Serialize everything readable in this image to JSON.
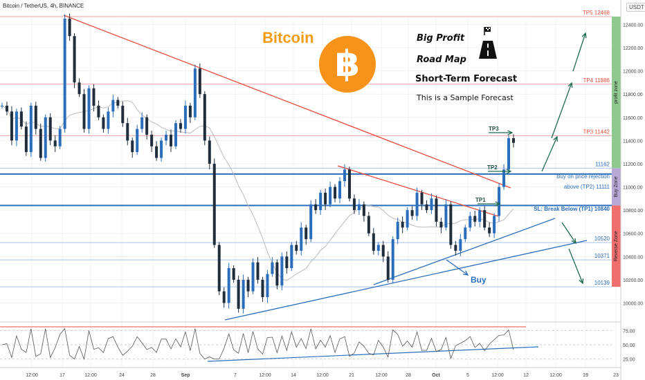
{
  "header": {
    "symbol": "Bitcoin / TetherUS, 4h, BINANCE",
    "currency": "USDT"
  },
  "title": "Bitcoin",
  "btc_symbol": "฿",
  "notes": {
    "big_profit": "Big Profit",
    "road_map": "Road Map",
    "short_term": "Short-Term Forecast",
    "sample": "This is a Sample Forecast"
  },
  "annotations": {
    "buy_rejection_line1": "Buy on price rejection",
    "buy_rejection_line2": "above (TP2) 11111",
    "sl": "SL: Break Below (TP1) 10840",
    "buy": "Buy",
    "tp1": "TP1",
    "tp2": "TP2",
    "tp3": "TP3"
  },
  "zones": {
    "profit": "profit zone",
    "buy": "Buy Zone",
    "reverse": "Reverse Zone"
  },
  "colors": {
    "up": "#2a6ebb",
    "down": "#1f2d3d",
    "tp": "#e74c3c",
    "level": "#2a6ebb",
    "profit_zone": "#8fc98f",
    "buy_zone": "#b7a8d6",
    "reverse_zone": "#ef6f6f",
    "arrow": "#1d6b4f"
  },
  "chart_data": {
    "type": "candlestick",
    "x_ticks": [
      "12:00",
      "17",
      "12:00",
      "24",
      "28",
      "Sep",
      "7",
      "12:00",
      "14",
      "12:00",
      "21",
      "12:00",
      "28",
      "Oct",
      "5",
      "12:00",
      "12",
      "12:00",
      "19",
      "23"
    ],
    "y_ticks": [
      12400,
      12200,
      12000,
      11800,
      11600,
      11400,
      11200,
      11000,
      10800,
      10600,
      10400,
      10200,
      10000
    ],
    "ylim": [
      9860,
      12480
    ],
    "price_levels": [
      {
        "label": "TP5",
        "value": 12468,
        "kind": "tp"
      },
      {
        "label": "TP4",
        "value": 11886,
        "kind": "tp"
      },
      {
        "label": "TP3",
        "value": 11442,
        "kind": "tp"
      },
      {
        "label": "",
        "value": 11162,
        "kind": "level"
      },
      {
        "label": "",
        "value": 11111,
        "kind": "level"
      },
      {
        "label": "",
        "value": 10840,
        "kind": "level"
      },
      {
        "label": "",
        "value": 10520,
        "kind": "level"
      },
      {
        "label": "",
        "value": 10371,
        "kind": "level"
      },
      {
        "label": "",
        "value": 10139,
        "kind": "level"
      }
    ],
    "close_path": [
      11700,
      11650,
      11400,
      11650,
      11520,
      11300,
      11700,
      11500,
      11250,
      11600,
      11400,
      11350,
      11500,
      12450,
      12300,
      11900,
      11800,
      11500,
      11850,
      11700,
      11600,
      11500,
      11650,
      11750,
      11700,
      11550,
      11400,
      11300,
      11500,
      11600,
      11450,
      11350,
      11250,
      11400,
      11450,
      11350,
      11550,
      11500,
      11700,
      11600,
      12020,
      11800,
      11400,
      11200,
      10500,
      10100,
      10000,
      10300,
      10200,
      9950,
      10200,
      10100,
      10350,
      10200,
      10050,
      10250,
      10350,
      10150,
      10400,
      10300,
      10500,
      10450,
      10650,
      10550,
      10850,
      10800,
      10950,
      10850,
      11000,
      10900,
      11050,
      11150,
      10900,
      10800,
      10850,
      10750,
      10600,
      10450,
      10500,
      10400,
      10200,
      10550,
      10700,
      10650,
      10800,
      10750,
      10950,
      10850,
      10800,
      10900,
      10700,
      10650,
      10850,
      10500,
      10450,
      10550,
      10650,
      10750,
      10700,
      10800,
      10650,
      10600,
      10750,
      11000,
      11150,
      11420,
      11380
    ],
    "rsi": {
      "ticks": [
        75.0,
        50.0,
        25.0
      ]
    }
  }
}
